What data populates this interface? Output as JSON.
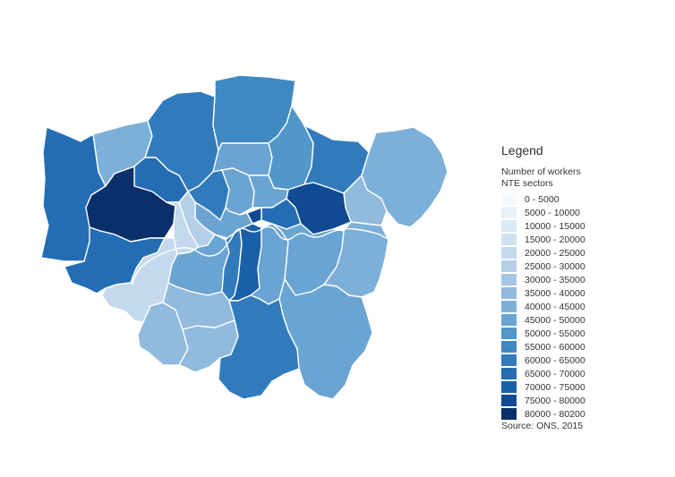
{
  "legend": {
    "title": "Legend",
    "subtitle_line1": "Number of workers",
    "subtitle_line2": "NTE sectors",
    "classes": [
      {
        "label": "0 - 5000",
        "color": "#f6f9fd"
      },
      {
        "label": "5000 - 10000",
        "color": "#e9f1fa"
      },
      {
        "label": "10000 - 15000",
        "color": "#dce8f6"
      },
      {
        "label": "15000 - 20000",
        "color": "#d1e1f2"
      },
      {
        "label": "20000 - 25000",
        "color": "#c5d9ee"
      },
      {
        "label": "25000 - 30000",
        "color": "#b5cfe8"
      },
      {
        "label": "30000 - 35000",
        "color": "#a5c6e3"
      },
      {
        "label": "35000 - 40000",
        "color": "#91badd"
      },
      {
        "label": "40000 - 45000",
        "color": "#7db0d8"
      },
      {
        "label": "45000 - 50000",
        "color": "#6aa4d2"
      },
      {
        "label": "50000 - 55000",
        "color": "#5297ca"
      },
      {
        "label": "55000 - 60000",
        "color": "#3f89c2"
      },
      {
        "label": "60000 - 65000",
        "color": "#317bbd"
      },
      {
        "label": "65000 - 70000",
        "color": "#246db4"
      },
      {
        "label": "70000 - 75000",
        "color": "#1960a9"
      },
      {
        "label": "75000 - 80000",
        "color": "#0f4a92"
      },
      {
        "label": "80000 - 80200",
        "color": "#0a2f6a"
      }
    ],
    "source": "Source: ONS, 2015"
  },
  "river": {
    "name": "river-thames",
    "color": "#ffffff"
  },
  "boroughs": [
    {
      "id": "hillingdon",
      "class_index": 13
    },
    {
      "id": "harrow",
      "class_index": 8
    },
    {
      "id": "barnet",
      "class_index": 12
    },
    {
      "id": "enfield",
      "class_index": 11
    },
    {
      "id": "brent",
      "class_index": 13
    },
    {
      "id": "ealing",
      "class_index": 16
    },
    {
      "id": "haringey",
      "class_index": 9
    },
    {
      "id": "waltham-forest",
      "class_index": 10
    },
    {
      "id": "redbridge",
      "class_index": 12
    },
    {
      "id": "havering",
      "class_index": 8
    },
    {
      "id": "camden",
      "class_index": 12
    },
    {
      "id": "islington",
      "class_index": 9
    },
    {
      "id": "hackney",
      "class_index": 9
    },
    {
      "id": "barking-dagenham",
      "class_index": 7
    },
    {
      "id": "newham",
      "class_index": 15
    },
    {
      "id": "tower-hamlets",
      "class_index": 13
    },
    {
      "id": "city-of-london",
      "class_index": 15
    },
    {
      "id": "westminster",
      "class_index": 9
    },
    {
      "id": "kensington-chelsea",
      "class_index": 5
    },
    {
      "id": "hammersmith-fulham",
      "class_index": 4
    },
    {
      "id": "hounslow",
      "class_index": 13
    },
    {
      "id": "richmond",
      "class_index": 4
    },
    {
      "id": "kingston",
      "class_index": 7
    },
    {
      "id": "wandsworth",
      "class_index": 9
    },
    {
      "id": "lambeth",
      "class_index": 12
    },
    {
      "id": "southwark",
      "class_index": 14
    },
    {
      "id": "lewisham",
      "class_index": 9
    },
    {
      "id": "greenwich",
      "class_index": 9
    },
    {
      "id": "bexley",
      "class_index": 8
    },
    {
      "id": "bromley",
      "class_index": 9
    },
    {
      "id": "croydon",
      "class_index": 12
    },
    {
      "id": "sutton",
      "class_index": 7
    },
    {
      "id": "merton",
      "class_index": 7
    }
  ]
}
